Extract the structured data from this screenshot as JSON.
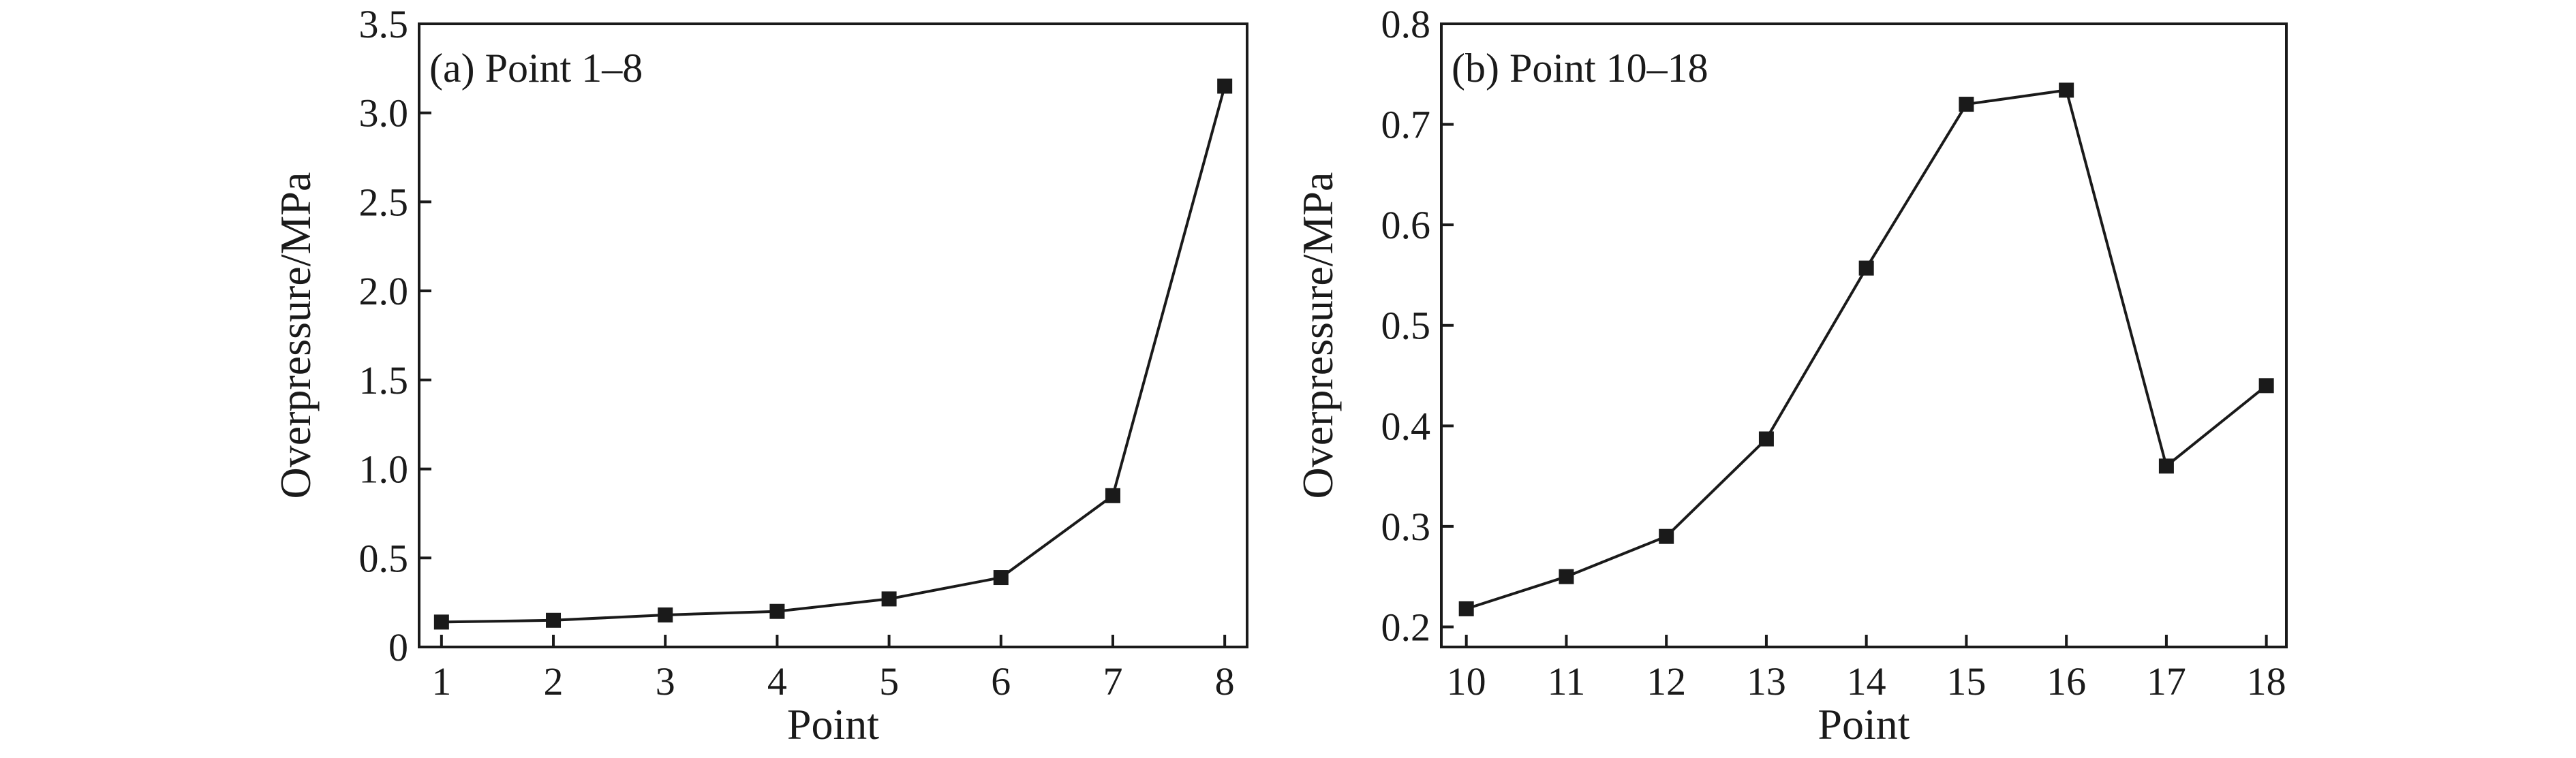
{
  "chart_data": [
    {
      "type": "line",
      "title": "(a) Point 1–8",
      "xlabel": "Point",
      "ylabel": "Overpressure/MPa",
      "xlim": [
        0.8,
        8.2
      ],
      "ylim": [
        0,
        3.5
      ],
      "xticks": [
        1,
        2,
        3,
        4,
        5,
        6,
        7,
        8
      ],
      "yticks": [
        0,
        0.5,
        1.0,
        1.5,
        2.0,
        2.5,
        3.0,
        3.5
      ],
      "ytick_labels": [
        "0",
        "0.5",
        "1.0",
        "1.5",
        "2.0",
        "2.5",
        "3.0",
        "3.5"
      ],
      "x": [
        1,
        2,
        3,
        4,
        5,
        6,
        7,
        8
      ],
      "y": [
        0.14,
        0.15,
        0.18,
        0.2,
        0.27,
        0.39,
        0.85,
        3.15
      ],
      "marker": "square",
      "grid": false
    },
    {
      "type": "line",
      "title": "(b) Point 10–18",
      "xlabel": "Point",
      "ylabel": "Overpressure/MPa",
      "xlim": [
        9.75,
        18.2
      ],
      "ylim": [
        0.18,
        0.8
      ],
      "xticks": [
        10,
        11,
        12,
        13,
        14,
        15,
        16,
        17,
        18
      ],
      "yticks": [
        0.2,
        0.3,
        0.4,
        0.5,
        0.6,
        0.7,
        0.8
      ],
      "ytick_labels": [
        "0.2",
        "0.3",
        "0.4",
        "0.5",
        "0.6",
        "0.7",
        "0.8"
      ],
      "x": [
        10,
        11,
        12,
        13,
        14,
        15,
        16,
        17,
        18
      ],
      "y": [
        0.218,
        0.25,
        0.29,
        0.387,
        0.557,
        0.72,
        0.734,
        0.36,
        0.44
      ],
      "marker": "square",
      "grid": false
    }
  ]
}
